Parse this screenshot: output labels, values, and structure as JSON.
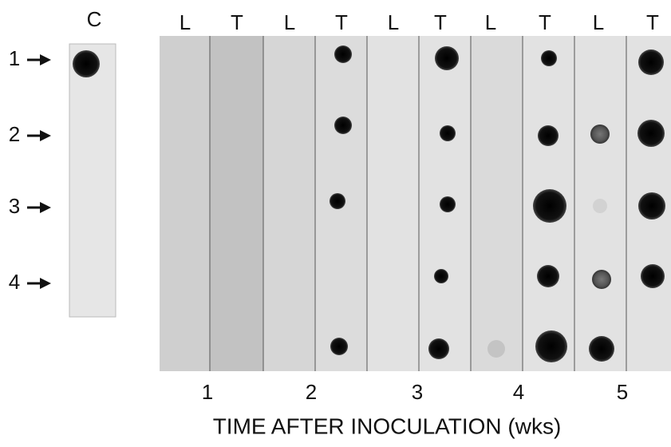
{
  "control_label": "C",
  "lane_labels": [
    "L",
    "T",
    "L",
    "T",
    "L",
    "T",
    "L",
    "T",
    "L",
    "T"
  ],
  "row_labels": [
    "1",
    "2",
    "3",
    "4"
  ],
  "weeks": [
    "1",
    "2",
    "3",
    "4",
    "5"
  ],
  "x_axis_title": "TIME AFTER INOCULATION (wks)"
}
